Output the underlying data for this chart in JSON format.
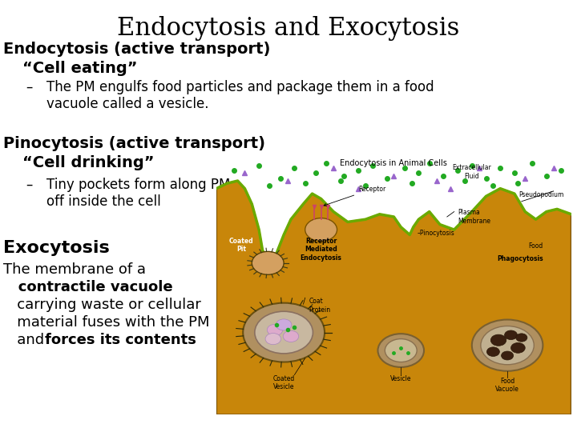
{
  "title": "Endocytosis and Exocytosis",
  "background_color": "#ffffff",
  "text_color": "#000000",
  "title_fontsize": 22,
  "heading_fontsize": 14,
  "subheading_fontsize": 14,
  "bullet_fontsize": 12,
  "exo_heading_fontsize": 16,
  "exo_body_fontsize": 13,
  "section1_heading": "Endocytosis (active transport)",
  "section1_subheading": "“Cell eating”",
  "section1_bullet": "The PM engulfs food particles and package them in a food\nvacuole called a vesicle.",
  "section2_heading": "Pinocytosis (active transport)",
  "section2_subheading": "“Cell drinking”",
  "section2_bullet": "Tiny pockets form along PM\noff inside the cell",
  "exo_heading": "Exocytosis",
  "exo_line1": "The membrane of a",
  "exo_line2": "   contractile vacuole",
  "exo_line3": "   carrying waste or cellular",
  "exo_line4": "   material fuses with the PM",
  "exo_line5_plain": "   and ",
  "exo_line5_bold": "forces its contents",
  "diagram_title": "Endocytosis in Animal Cells",
  "cell_color": "#c8860a",
  "cell_edge_color": "#7a5200",
  "cell_interior": "#b87800",
  "green_dot_color": "#22aa22",
  "purple_tri_color": "#9966cc",
  "membrane_green": "#6aaa00"
}
